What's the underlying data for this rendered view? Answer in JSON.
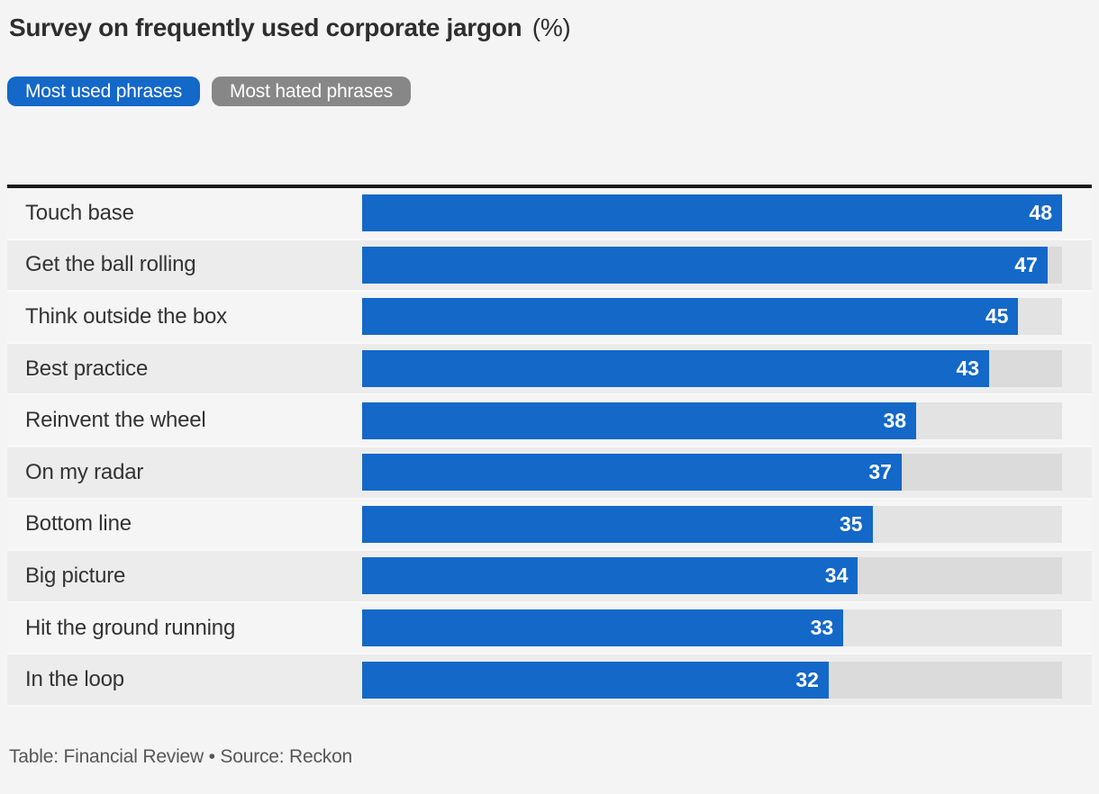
{
  "header": {
    "title": "Survey on frequently used corporate jargon",
    "unit": "(%)"
  },
  "tabs": [
    {
      "label": "Most used phrases",
      "active": true
    },
    {
      "label": "Most hated phrases",
      "active": false
    }
  ],
  "chart_data": {
    "type": "bar",
    "orientation": "horizontal",
    "title": "Survey on frequently used corporate jargon (%)",
    "categories": [
      "Touch base",
      "Get the ball rolling",
      "Think outside the box",
      "Best practice",
      "Reinvent the wheel",
      "On my radar",
      "Bottom line",
      "Big picture",
      "Hit the ground running",
      "In the loop"
    ],
    "values": [
      48,
      47,
      45,
      43,
      38,
      37,
      35,
      34,
      33,
      32
    ],
    "xlabel": "",
    "ylabel": "",
    "xlim": [
      0,
      48
    ],
    "grid": false,
    "legend_position": "none",
    "value_labels_shown": true
  },
  "footer": {
    "text": "Table: Financial Review • Source: Reckon"
  },
  "colors": {
    "accent": "#1368c8",
    "inactive_tab": "#878787",
    "page_bg": "#f4f4f4",
    "row_light": "#f5f5f5",
    "row_dark": "#ececec",
    "track": "#00000012",
    "title": "#2e2e2e",
    "label": "#333333",
    "value_text": "#ffffff",
    "rule": "#1b1b1b",
    "footer": "#575757"
  }
}
